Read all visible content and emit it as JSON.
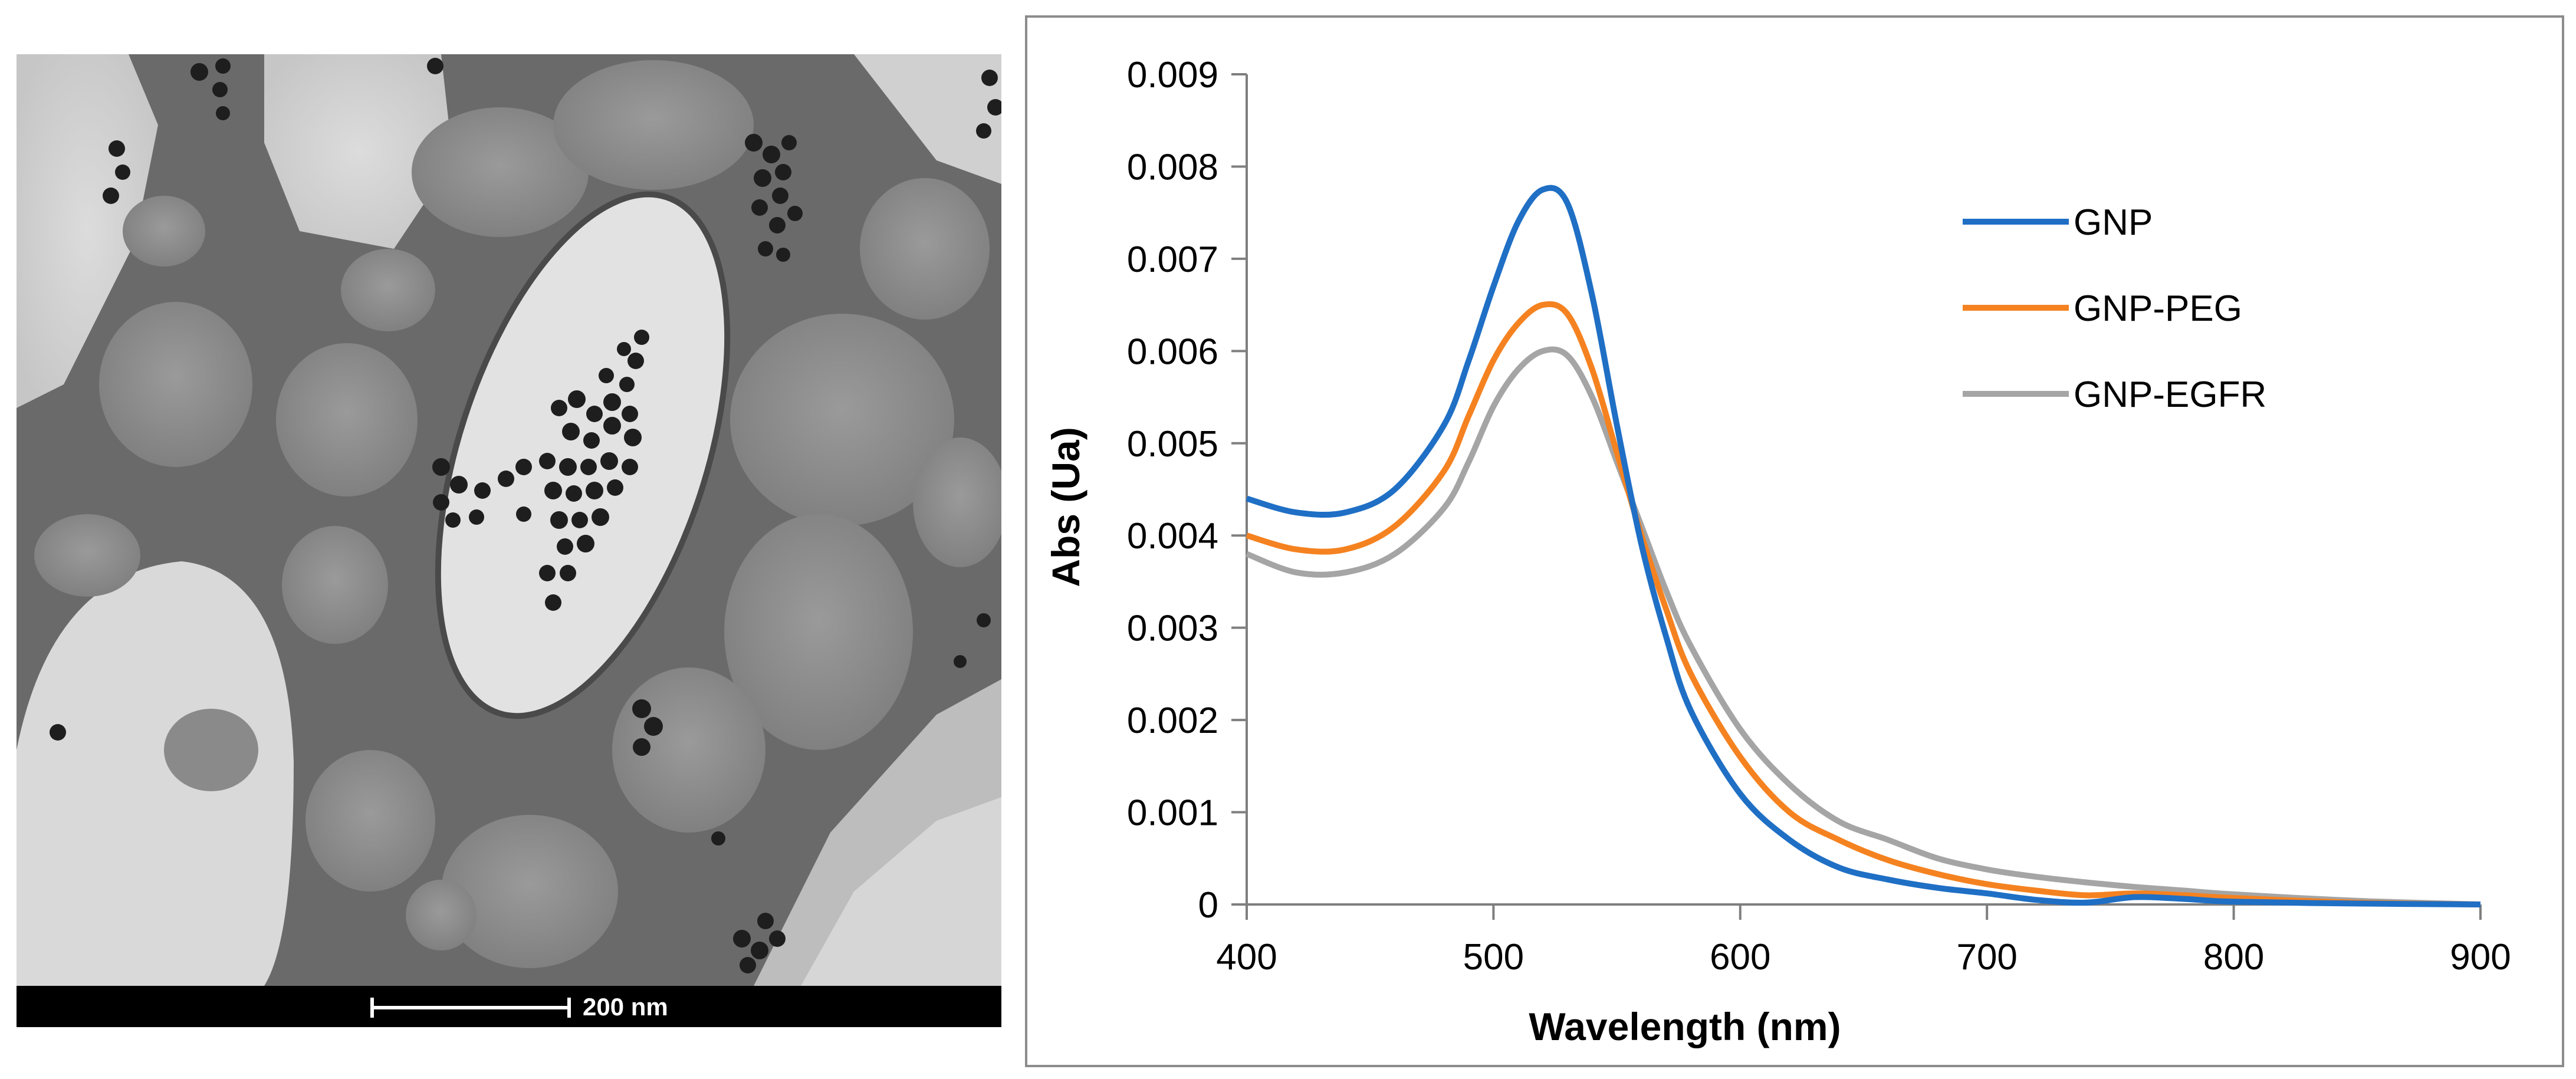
{
  "tem_image": {
    "scale_bar_label": "200 nm"
  },
  "chart_data": {
    "type": "line",
    "title": "",
    "xlabel": "Wavelength (nm)",
    "ylabel": "Abs (Ua)",
    "xlim": [
      400,
      900
    ],
    "ylim": [
      0,
      0.009
    ],
    "xticks": [
      400,
      500,
      600,
      700,
      800,
      900
    ],
    "yticks": [
      0,
      0.001,
      0.002,
      0.003,
      0.004,
      0.005,
      0.006,
      0.007,
      0.008,
      0.009
    ],
    "ytick_labels": [
      "0",
      "0.001",
      "0.002",
      "0.003",
      "0.004",
      "0.005",
      "0.006",
      "0.007",
      "0.008",
      "0.009"
    ],
    "grid": false,
    "legend_position": "top-right",
    "series": [
      {
        "name": "GNP",
        "color": "#1f6fc5",
        "x": [
          400,
          420,
          440,
          460,
          480,
          490,
          500,
          510,
          520,
          530,
          540,
          550,
          560,
          570,
          580,
          600,
          620,
          640,
          660,
          680,
          700,
          720,
          740,
          760,
          780,
          800,
          850,
          900
        ],
        "y": [
          0.0044,
          0.00425,
          0.00425,
          0.0045,
          0.0052,
          0.0059,
          0.0067,
          0.0074,
          0.00775,
          0.0076,
          0.0066,
          0.0052,
          0.0039,
          0.0029,
          0.0021,
          0.0012,
          0.0007,
          0.0004,
          0.00027,
          0.00018,
          0.00012,
          5e-05,
          2e-05,
          8e-05,
          6e-05,
          3e-05,
          1e-05,
          0.0
        ]
      },
      {
        "name": "GNP-PEG",
        "color": "#f58220",
        "x": [
          400,
          420,
          440,
          460,
          480,
          490,
          500,
          510,
          520,
          530,
          540,
          550,
          560,
          570,
          580,
          600,
          620,
          640,
          660,
          680,
          700,
          720,
          740,
          760,
          780,
          800,
          850,
          900
        ],
        "y": [
          0.004,
          0.00385,
          0.00385,
          0.0041,
          0.0047,
          0.0053,
          0.0059,
          0.0063,
          0.0065,
          0.0064,
          0.0058,
          0.0049,
          0.004,
          0.0032,
          0.0025,
          0.0016,
          0.001,
          0.0007,
          0.00048,
          0.00033,
          0.00022,
          0.00015,
          0.0001,
          0.00012,
          0.0001,
          7e-05,
          2e-05,
          0.0
        ]
      },
      {
        "name": "GNP-EGFR",
        "color": "#a5a5a5",
        "x": [
          400,
          420,
          440,
          460,
          480,
          490,
          500,
          510,
          520,
          530,
          540,
          550,
          560,
          570,
          580,
          600,
          620,
          640,
          660,
          680,
          700,
          720,
          740,
          760,
          780,
          800,
          850,
          900
        ],
        "y": [
          0.0038,
          0.0036,
          0.0036,
          0.0038,
          0.0043,
          0.0048,
          0.0054,
          0.0058,
          0.006,
          0.00595,
          0.0055,
          0.0048,
          0.0041,
          0.0034,
          0.0028,
          0.0019,
          0.0013,
          0.0009,
          0.0007,
          0.0005,
          0.00038,
          0.0003,
          0.00024,
          0.00019,
          0.00015,
          0.00011,
          4e-05,
          0.0
        ]
      }
    ]
  }
}
